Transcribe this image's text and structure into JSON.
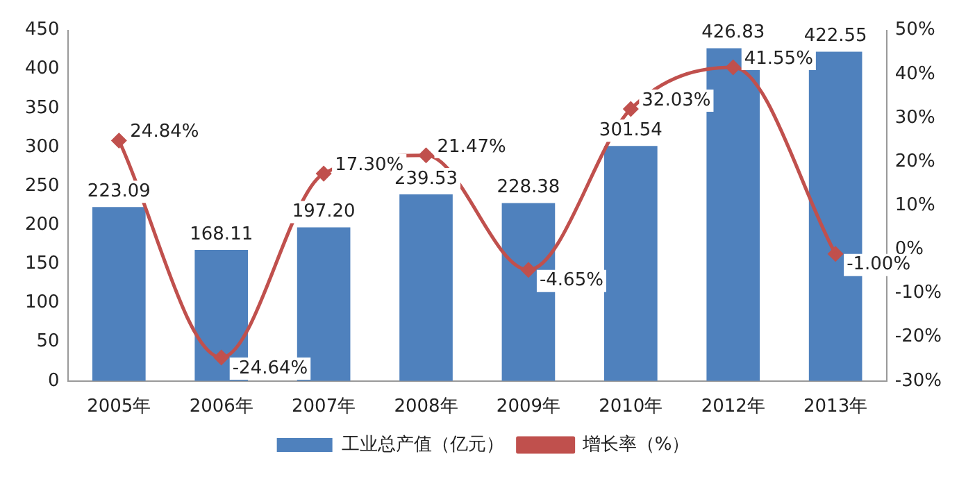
{
  "chart_data": {
    "type": "bar",
    "categories": [
      "2005年",
      "2006年",
      "2007年",
      "2008年",
      "2009年",
      "2010年",
      "2012年",
      "2013年"
    ],
    "series": [
      {
        "name": "工业总产值（亿元）",
        "color": "#4f81bd",
        "values": [
          223.09,
          168.11,
          197.2,
          239.53,
          228.38,
          301.54,
          426.83,
          422.55
        ],
        "value_labels": [
          "223.09",
          "168.11",
          "197.20",
          "239.53",
          "228.38",
          "301.54",
          "426.83",
          "422.55"
        ]
      },
      {
        "name": "增长率（%）",
        "type": "line",
        "axis": "y2",
        "color": "#c0504d",
        "marker": "diamond",
        "values": [
          24.84,
          -24.64,
          17.3,
          21.47,
          -4.65,
          32.03,
          41.55,
          -1.0
        ],
        "value_labels": [
          "24.84%",
          "-24.64%",
          "17.30%",
          "21.47%",
          "-4.65%",
          "32.03%",
          "41.55%",
          "-1.00%"
        ]
      }
    ],
    "ylim": [
      0,
      450
    ],
    "yticks": [
      0,
      50,
      100,
      150,
      200,
      250,
      300,
      350,
      400,
      450
    ],
    "y2lim": [
      -30,
      50
    ],
    "y2ticks": [
      {
        "value": -30,
        "label": "-30%"
      },
      {
        "value": -20,
        "label": "-20%"
      },
      {
        "value": -10,
        "label": "-10%"
      },
      {
        "value": 0,
        "label": "0%"
      },
      {
        "value": 10,
        "label": "10%"
      },
      {
        "value": 20,
        "label": "20%"
      },
      {
        "value": 30,
        "label": "30%"
      },
      {
        "value": 40,
        "label": "40%"
      },
      {
        "value": 50,
        "label": "50%"
      }
    ],
    "grid": false,
    "legend": "bottom"
  }
}
